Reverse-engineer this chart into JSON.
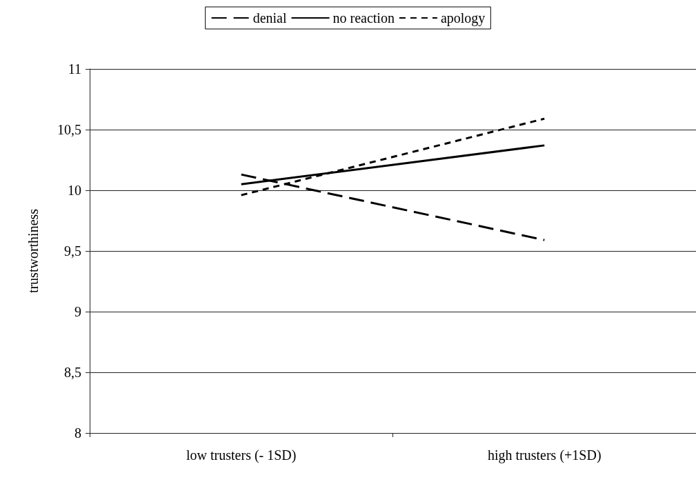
{
  "chart_data": {
    "type": "line",
    "ylabel": "trustworthiness",
    "categories": [
      "low trusters (- 1SD)",
      "high trusters (+1SD)"
    ],
    "series": [
      {
        "name": "denial",
        "color": "#000000",
        "line_style": "dashed",
        "values": [
          10.13,
          9.59
        ]
      },
      {
        "name": "no reaction",
        "color": "#000000",
        "line_style": "solid",
        "values": [
          10.05,
          10.37
        ]
      },
      {
        "name": "apology",
        "color": "#000000",
        "line_style": "dotted",
        "values": [
          9.96,
          10.59
        ]
      }
    ],
    "ylim": [
      8,
      11
    ],
    "yticks": [
      8,
      {
        "value": 8.5,
        "label": "8,5"
      },
      9,
      {
        "value": 9.5,
        "label": "9,5"
      },
      10,
      {
        "value": 10.5,
        "label": "10,5"
      },
      11
    ],
    "grid": "y",
    "legend": "top",
    "marker": "none"
  }
}
